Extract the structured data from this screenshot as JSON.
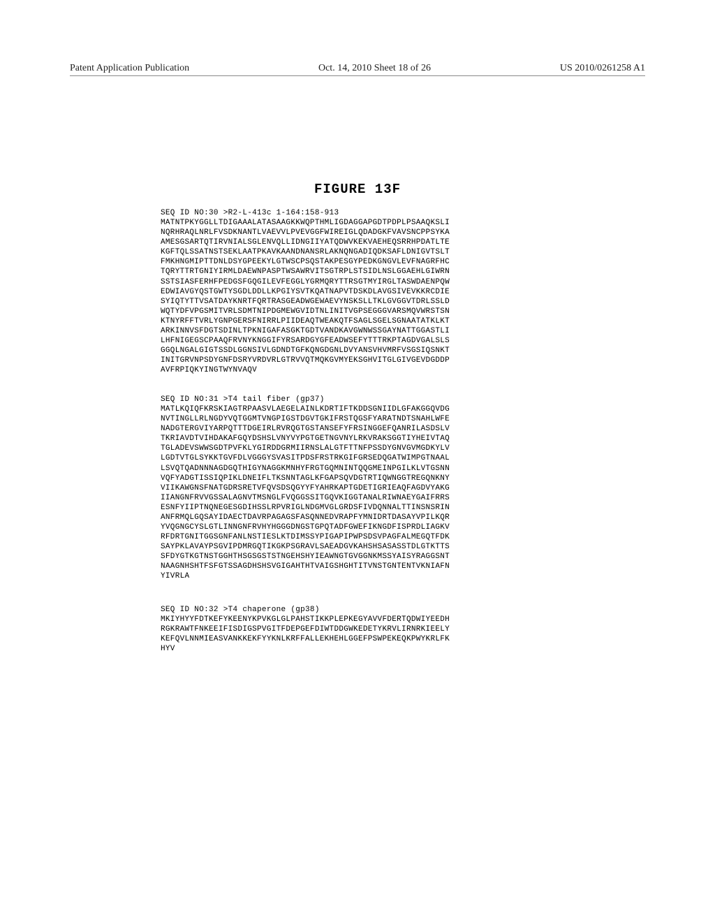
{
  "header": {
    "left": "Patent Application Publication",
    "center": "Oct. 14, 2010  Sheet 18 of 26",
    "right": "US 2010/0261258 A1"
  },
  "figure_title": "FIGURE 13F",
  "sequences": {
    "seq1": {
      "header": "SEQ ID NO:30 >R2-L-413c 1-164:158-913",
      "lines": [
        "MATNTPKYGGLLTDIGAAALATASAAGKKWQPTHMLIGDAGGAPGDTPDPLPSAAQKSLI",
        "NQRHRAQLNRLFVSDKNANTLVAEVVLPVEVGGFWIREIGLQDADGKFVAVSNCPPSYKA",
        "AMESGSARTQTIRVNIALSGLENVQLLIDNGIIYATQDWVKEKVAEHEQSRRHPDATLTE",
        "KGFTQLSSATNSTSEKLAATPKAVKAANDNANSRLAKNQNGADIQDKSAFLDNIGVTSLT",
        "FMKHNGMIPTTDNLDSYGPEEKYLGTWSCPSQSTAKPESGYPEDKGNGVLEVFNAGRFHC",
        "TQRYTTRTGNIYIRMLDAEWNPASPTWSAWRVITSGTRPLSTSIDLNSLGGAEHLGIWRN",
        "SSTSIASFERHFPEDGSFGQGILEVFEGGLYGRMQRYTTRSGTMYIRGLTASWDAENPQW",
        "EDWIAVGYQSTGWTYSGDLDDLLKPGIYSVTKQATNAPVTDSKDLAVGSIVEVKKRCDIE",
        "SYIQTYTTVSATDAYKNRTFQRTRASGEADWGEWAEVYNSKSLLTKLGVGGVTDRLSSLD",
        "WQTYDFVPGSMITVRLSDMTNIPDGMEWGVIDTNLINITVGPSEGGGVARSMQVWRSTSN",
        "KTNYRFFTVRLYGNPGERSFNIRRLPIIDEAQTWEAKQTFSAGLSGELSGNAATATKLKT",
        "ARKINNVSFDGTSDINLTPKNIGAFASGKTGDTVANDKAVGWNWSSGAYNATTGGASTLI",
        "LHFNIGEGSCPAAQFRVNYKNGGIFYRSARDGYGFEADWSEFYTTTRKPTAGDVGALSLS",
        "GGQLNGALGIGTSSDLGGNSIVLGDNDTGFKQNGDGNLDVYANSVHVMRFVSGSIQSNKT",
        "INITGRVNPSDYGNFDSRYVRDVRLGTRVVQTMQKGVMYEKSGHVITGLGIVGEVDGDDP",
        "AVFRPIQKYINGTWYNVAQV"
      ]
    },
    "seq2": {
      "header": "SEQ ID NO:31 >T4 tail fiber (gp37)",
      "lines": [
        "MATLKQIQFKRSKIAGTRPAASVLAEGELAINLKDRTIFTKDDSGNIIDLGFAKGGQVDG",
        "NVTINGLLRLNGDYVQTGGMTVNGPIGSTDGVTGKIFRSTQGSFYARATNDTSNAHLWFE",
        "NADGTERGVIYARPQTTTDGEIRLRVRQGTGSTANSEFYFRSINGGEFQANRILASDSLV",
        "TKRIAVDTVIHDAKAFGQYDSHSLVNYVYPGTGETNGVNYLRKVRAKSGGTIYHEIVTAQ",
        "TGLADEVSWWSGDTPVFKLYGIRDDGRMIIRNSLALGTFTTNFPSSDYGNVGVMGDKYLV",
        "LGDTVTGLSYKKTGVFDLVGGGYSVASITPDSFRSTRKGIFGRSEDQGATWIMPGTNAAL",
        "LSVQTQADNNNAGDGQTHIGYNAGGKMNHYFRGTGQMNINTQQGMEINPGILKLVTGSNN",
        "VQFYADGTISSIQPIKLDNEIFLTKSNNTAGLKFGAPSQVDGTRTIQWNGGTREGQNKNY",
        "VIIKAWGNSFNATGDRSRETVFQVSDSQGYYFYAHRKAPTGDETIGRIEAQFAGDVYAKG",
        "IIANGNFRVVGSSALAGNVTMSNGLFVQGGSSITGQVKIGGTANALRIWNAEYGAIFRRS",
        "ESNFYIIPTNQNEGESGDIHSSLRPVRIGLNDGMVGLGRDSFIVDQNNALTTINSNSRIN",
        "ANFRMQLGQSAYIDAECTDAVRPAGAGSFASQNNEDVRAPFYMNIDRTDASAYVPILKQR",
        "YVQGNGCYSLGTLINNGNFRVHYHGGGDNGSTGPQTADFGWEFIKNGDFISPRDLIAGKV",
        "RFDRTGNITGGSGNFANLNSTIESLKTDIMSSYPIGAPIPWPSDSVPAGFALMEGQTFDK",
        "SAYPKLAVAYPSGVIPDMRGQTIKGKPSGRAVLSAEADGVKAHSHSASASSTDLGTKTTS",
        "SFDYGTKGTNSTGGHTHSGSGSTSTNGEHSHYIEAWNGTGVGGNKMSSYAISYRAGGSNT",
        "NAAGNHSHTFSFGTSSAGDHSHSVGIGAHTHTVAIGSHGHTITVNSTGNTENTVKNIAFN",
        "YIVRLA"
      ]
    },
    "seq3": {
      "header": "SEQ ID NO:32 >T4 chaperone (gp38)",
      "lines": [
        "MKIYHYYFDTKEFYKEENYKPVKGLGLPAHSTIKKPLEPKEGYAVVFDERTQDWIYEEDH",
        "RGKRAWTFNKEEIFISDIGSPVGITFDEPGEFDIWTDDGWKEDETYKRVLIRNRKIEELY",
        "KEFQVLNNMIEASVANKKEKFYYKNLKRFFALLEKHEHLGGEFPSWPEKEQKPWYKRLFK",
        "HYV"
      ]
    }
  }
}
